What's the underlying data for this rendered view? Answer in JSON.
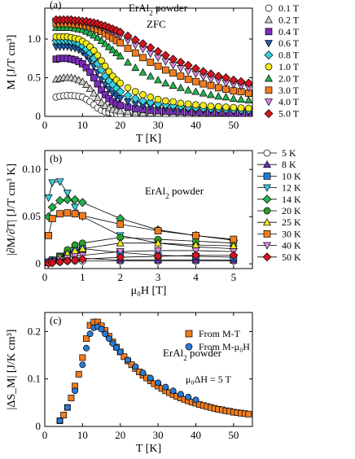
{
  "chart_data": [
    {
      "panel_label": "(a)",
      "type": "scatter",
      "title": "ErAl",
      "title_sub": "2",
      "title_suffix": " powder",
      "subtitle": "ZFC",
      "xlabel": "T [K]",
      "ylabel": "M [J/T cm³]",
      "xlim": [
        0,
        55
      ],
      "ylim": [
        0,
        1.4
      ],
      "xticks": [
        0,
        10,
        20,
        30,
        40,
        50
      ],
      "yticks": [
        0,
        0.5,
        1.0
      ],
      "ytick_labels": [
        "0",
        "0.5",
        "1.0"
      ],
      "legend_position": "right",
      "x": [
        3,
        4,
        5,
        6,
        7,
        8,
        9,
        10,
        11,
        12,
        13,
        14,
        15,
        16,
        17,
        18,
        19,
        20,
        22,
        24,
        26,
        28,
        30,
        32,
        34,
        36,
        38,
        40,
        42,
        44,
        46,
        48,
        50,
        52,
        54
      ],
      "series": [
        {
          "name": "0.1 T",
          "marker": "circle",
          "color": "#ffffff",
          "values": [
            0.25,
            0.26,
            0.265,
            0.27,
            0.27,
            0.265,
            0.26,
            0.25,
            0.22,
            0.19,
            0.15,
            0.11,
            0.08,
            0.06,
            0.05,
            0.04,
            0.035,
            0.03,
            0.025,
            0.022,
            0.02,
            0.018,
            0.016,
            0.015,
            0.014,
            0.013,
            0.012,
            0.012,
            0.011,
            0.011,
            0.01,
            0.01,
            0.01,
            0.01,
            0.01
          ]
        },
        {
          "name": "0.2 T",
          "marker": "triangle-up",
          "color": "#d0d0d0",
          "values": [
            0.48,
            0.49,
            0.5,
            0.5,
            0.5,
            0.49,
            0.47,
            0.45,
            0.41,
            0.36,
            0.3,
            0.24,
            0.18,
            0.14,
            0.11,
            0.09,
            0.08,
            0.07,
            0.06,
            0.05,
            0.045,
            0.04,
            0.037,
            0.034,
            0.031,
            0.029,
            0.027,
            0.025,
            0.024,
            0.023,
            0.022,
            0.021,
            0.02,
            0.02,
            0.02
          ]
        },
        {
          "name": "0.4 T",
          "marker": "square",
          "color": "#7a2db8",
          "values": [
            0.74,
            0.75,
            0.75,
            0.75,
            0.74,
            0.73,
            0.71,
            0.68,
            0.63,
            0.57,
            0.5,
            0.42,
            0.34,
            0.28,
            0.23,
            0.19,
            0.16,
            0.14,
            0.12,
            0.1,
            0.09,
            0.08,
            0.075,
            0.07,
            0.065,
            0.06,
            0.055,
            0.052,
            0.05,
            0.048,
            0.046,
            0.044,
            0.042,
            0.04,
            0.04
          ]
        },
        {
          "name": "0.6 T",
          "marker": "triangle-down",
          "color": "#1f5fa8",
          "values": [
            0.9,
            0.9,
            0.9,
            0.9,
            0.89,
            0.88,
            0.86,
            0.83,
            0.78,
            0.72,
            0.65,
            0.57,
            0.48,
            0.41,
            0.35,
            0.3,
            0.26,
            0.23,
            0.19,
            0.16,
            0.14,
            0.13,
            0.12,
            0.11,
            0.1,
            0.095,
            0.09,
            0.085,
            0.08,
            0.075,
            0.072,
            0.069,
            0.066,
            0.063,
            0.06
          ]
        },
        {
          "name": "0.8 T",
          "marker": "diamond",
          "color": "#35d0e0",
          "values": [
            0.98,
            0.98,
            0.98,
            0.98,
            0.97,
            0.96,
            0.94,
            0.91,
            0.87,
            0.82,
            0.75,
            0.68,
            0.6,
            0.52,
            0.46,
            0.41,
            0.36,
            0.32,
            0.27,
            0.23,
            0.2,
            0.18,
            0.16,
            0.15,
            0.14,
            0.13,
            0.12,
            0.11,
            0.105,
            0.1,
            0.095,
            0.09,
            0.087,
            0.083,
            0.08
          ]
        },
        {
          "name": "1.0 T",
          "marker": "circle",
          "color": "#f2ea1a",
          "values": [
            1.03,
            1.03,
            1.03,
            1.03,
            1.02,
            1.01,
            1.0,
            0.97,
            0.94,
            0.9,
            0.85,
            0.79,
            0.72,
            0.65,
            0.58,
            0.52,
            0.47,
            0.43,
            0.37,
            0.32,
            0.28,
            0.25,
            0.22,
            0.2,
            0.19,
            0.17,
            0.16,
            0.15,
            0.14,
            0.13,
            0.125,
            0.12,
            0.115,
            0.11,
            0.105
          ]
        },
        {
          "name": "2.0 T",
          "marker": "triangle-up",
          "color": "#22b24c",
          "values": [
            1.15,
            1.15,
            1.15,
            1.15,
            1.15,
            1.14,
            1.13,
            1.12,
            1.1,
            1.08,
            1.05,
            1.02,
            0.98,
            0.94,
            0.9,
            0.86,
            0.82,
            0.78,
            0.7,
            0.63,
            0.57,
            0.52,
            0.47,
            0.43,
            0.4,
            0.37,
            0.34,
            0.32,
            0.3,
            0.28,
            0.26,
            0.25,
            0.23,
            0.22,
            0.21
          ]
        },
        {
          "name": "3.0 T",
          "marker": "square",
          "color": "#f07c1e",
          "values": [
            1.2,
            1.2,
            1.2,
            1.2,
            1.2,
            1.19,
            1.19,
            1.18,
            1.17,
            1.16,
            1.14,
            1.12,
            1.1,
            1.07,
            1.04,
            1.01,
            0.98,
            0.95,
            0.88,
            0.82,
            0.76,
            0.7,
            0.65,
            0.6,
            0.56,
            0.52,
            0.48,
            0.45,
            0.42,
            0.4,
            0.37,
            0.35,
            0.33,
            0.32,
            0.3
          ]
        },
        {
          "name": "4.0 T",
          "marker": "triangle-down",
          "color": "#d58ee0",
          "values": [
            1.23,
            1.23,
            1.23,
            1.23,
            1.23,
            1.22,
            1.22,
            1.21,
            1.2,
            1.19,
            1.18,
            1.17,
            1.15,
            1.13,
            1.11,
            1.09,
            1.06,
            1.04,
            0.98,
            0.92,
            0.87,
            0.81,
            0.76,
            0.71,
            0.66,
            0.62,
            0.58,
            0.55,
            0.51,
            0.48,
            0.46,
            0.43,
            0.41,
            0.39,
            0.37
          ]
        },
        {
          "name": "5.0 T",
          "marker": "diamond",
          "color": "#d4151f",
          "values": [
            1.25,
            1.25,
            1.25,
            1.25,
            1.25,
            1.24,
            1.24,
            1.23,
            1.23,
            1.22,
            1.21,
            1.2,
            1.18,
            1.17,
            1.15,
            1.13,
            1.11,
            1.09,
            1.04,
            0.99,
            0.94,
            0.89,
            0.84,
            0.79,
            0.74,
            0.7,
            0.66,
            0.62,
            0.58,
            0.55,
            0.52,
            0.5,
            0.47,
            0.45,
            0.43
          ]
        }
      ]
    },
    {
      "panel_label": "(b)",
      "type": "line",
      "title": "ErAl",
      "title_sub": "2",
      "title_suffix": " powder",
      "xlabel": "μ₀H [T]",
      "ylabel": "|∂M/∂T| [J/T cm³ K]",
      "xlim": [
        0,
        5.5
      ],
      "ylim": [
        -0.005,
        0.12
      ],
      "xticks": [
        0,
        1,
        2,
        3,
        4,
        5
      ],
      "yticks": [
        0,
        0.05,
        0.1
      ],
      "ytick_labels": [
        "0",
        "0.05",
        "0.10"
      ],
      "legend_position": "right",
      "x": [
        0.1,
        0.2,
        0.4,
        0.6,
        0.8,
        1.0,
        2.0,
        3.0,
        4.0,
        5.0
      ],
      "series": [
        {
          "name": "5 K",
          "marker": "circle",
          "color": "#ffffff",
          "values": [
            0.001,
            0.002,
            0.002,
            0.003,
            0.003,
            0.003,
            0.003,
            0.003,
            0.003,
            0.003
          ]
        },
        {
          "name": "8 K",
          "marker": "triangle-up",
          "color": "#6a2db8",
          "values": [
            0.002,
            0.004,
            0.006,
            0.007,
            0.007,
            0.006,
            0.004,
            0.004,
            0.004,
            0.004
          ]
        },
        {
          "name": "10 K",
          "marker": "square",
          "color": "#2a7bd6",
          "values": [
            0.002,
            0.004,
            0.008,
            0.012,
            0.015,
            0.016,
            0.012,
            0.009,
            0.008,
            0.007
          ]
        },
        {
          "name": "12 K",
          "marker": "triangle-down",
          "color": "#35d0e0",
          "values": [
            0.07,
            0.086,
            0.087,
            0.075,
            0.06,
            0.05,
            0.03,
            0.022,
            0.018,
            0.016
          ]
        },
        {
          "name": "14 K",
          "marker": "diamond",
          "color": "#22b24c",
          "values": [
            0.05,
            0.06,
            0.067,
            0.068,
            0.068,
            0.065,
            0.048,
            0.036,
            0.03,
            0.025
          ]
        },
        {
          "name": "20 K",
          "marker": "circle",
          "color": "#2aa02a",
          "values": [
            0.001,
            0.003,
            0.008,
            0.015,
            0.02,
            0.022,
            0.028,
            0.026,
            0.024,
            0.022
          ]
        },
        {
          "name": "25 K",
          "marker": "triangle-up",
          "color": "#f2ea1a",
          "values": [
            0.001,
            0.003,
            0.007,
            0.011,
            0.014,
            0.016,
            0.022,
            0.022,
            0.02,
            0.019
          ]
        },
        {
          "name": "30 K",
          "marker": "square",
          "color": "#f07c1e",
          "values": [
            0.03,
            0.048,
            0.053,
            0.054,
            0.053,
            0.051,
            0.042,
            0.035,
            0.03,
            0.026
          ]
        },
        {
          "name": "40 K",
          "marker": "triangle-down",
          "color": "#d58ee0",
          "values": [
            0.001,
            0.002,
            0.004,
            0.006,
            0.008,
            0.009,
            0.013,
            0.014,
            0.014,
            0.013
          ]
        },
        {
          "name": "50 K",
          "marker": "diamond",
          "color": "#d4151f",
          "values": [
            0.0005,
            0.001,
            0.002,
            0.003,
            0.004,
            0.005,
            0.007,
            0.008,
            0.009,
            0.009
          ]
        }
      ]
    },
    {
      "panel_label": "(c)",
      "type": "scatter",
      "title": "ErAl",
      "title_sub": "2",
      "title_suffix": " powder",
      "annotation": "μ₀ΔH = 5 T",
      "xlabel": "T [K]",
      "ylabel": "|ΔS_M| [J/K cm³]",
      "xlim": [
        0,
        55
      ],
      "ylim": [
        0,
        0.24
      ],
      "xticks": [
        0,
        10,
        20,
        30,
        40,
        50
      ],
      "yticks": [
        0,
        0.1,
        0.2
      ],
      "ytick_labels": [
        "0",
        "0.1",
        "0.2"
      ],
      "legend_position": "top-right",
      "series": [
        {
          "name": "From M-T",
          "marker": "square",
          "color": "#f07c1e",
          "x": [
            4,
            5,
            6,
            7,
            8,
            9,
            10,
            11,
            12,
            13,
            14,
            15,
            16,
            17,
            18,
            19,
            20,
            21,
            22,
            23,
            24,
            25,
            26,
            27,
            28,
            29,
            30,
            31,
            32,
            33,
            34,
            35,
            36,
            37,
            38,
            39,
            40,
            41,
            42,
            43,
            44,
            45,
            46,
            47,
            48,
            49,
            50,
            51,
            52,
            53,
            54
          ],
          "values": [
            0.012,
            0.024,
            0.04,
            0.06,
            0.085,
            0.11,
            0.145,
            0.185,
            0.213,
            0.22,
            0.22,
            0.212,
            0.202,
            0.19,
            0.178,
            0.167,
            0.157,
            0.147,
            0.138,
            0.13,
            0.122,
            0.115,
            0.108,
            0.102,
            0.096,
            0.09,
            0.085,
            0.08,
            0.075,
            0.071,
            0.067,
            0.063,
            0.06,
            0.057,
            0.054,
            0.051,
            0.049,
            0.046,
            0.044,
            0.042,
            0.04,
            0.038,
            0.036,
            0.035,
            0.033,
            0.032,
            0.03,
            0.029,
            0.028,
            0.027,
            0.026
          ]
        },
        {
          "name": "From M-μ₀H",
          "marker": "circle",
          "color": "#2a7bd6",
          "x": [
            4,
            6,
            8,
            10,
            11,
            12,
            13,
            14,
            15,
            16,
            17,
            18,
            19,
            20,
            22,
            24,
            26,
            28,
            30,
            32,
            34,
            36,
            38,
            40
          ],
          "values": [
            0.012,
            0.04,
            0.075,
            0.13,
            0.165,
            0.195,
            0.208,
            0.21,
            0.205,
            0.195,
            0.185,
            0.175,
            0.166,
            0.157,
            0.14,
            0.126,
            0.113,
            0.102,
            0.092,
            0.083,
            0.075,
            0.068,
            0.062,
            0.056
          ]
        }
      ]
    }
  ]
}
